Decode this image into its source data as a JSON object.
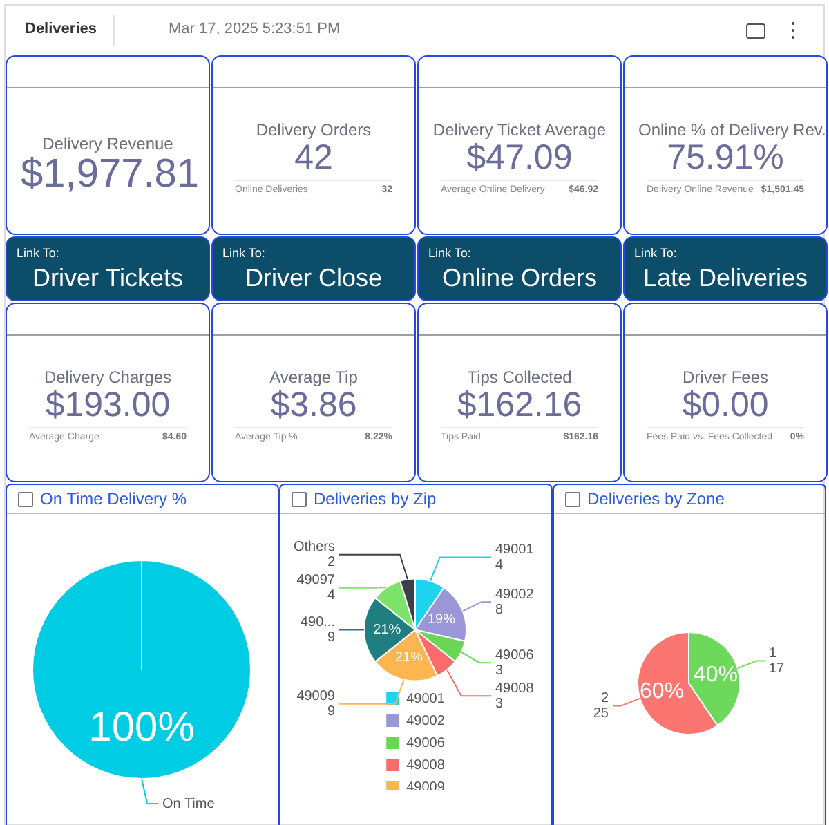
{
  "chart_data": [
    {
      "type": "other",
      "title": "Deliveries",
      "subtitle": "Mar 17, 2025 5:23:51 PM"
    },
    {
      "type": "other",
      "title": "Delivery Revenue",
      "annotations": [
        "$1,977.81"
      ]
    },
    {
      "type": "other",
      "title": "Delivery Orders",
      "annotations": [
        "42",
        "Online Deliveries",
        "32"
      ]
    },
    {
      "type": "other",
      "title": "Delivery Ticket Average",
      "annotations": [
        "$47.09",
        "Average Online Delivery",
        "$46.92"
      ]
    },
    {
      "type": "other",
      "title": "Online % of Delivery Rev.",
      "annotations": [
        "75.91%",
        "Delivery Online Revenue",
        "$1,501.45"
      ]
    },
    {
      "type": "other",
      "title": "Driver Tickets",
      "subtitle": "Link To:"
    },
    {
      "type": "other",
      "title": "Driver Close",
      "subtitle": "Link To:"
    },
    {
      "type": "other",
      "title": "Online Orders",
      "subtitle": "Link To:"
    },
    {
      "type": "other",
      "title": "Late Deliveries",
      "subtitle": "Link To:"
    },
    {
      "type": "other",
      "title": "Delivery Charges",
      "annotations": [
        "$193.00",
        "Average Charge",
        "$4.60"
      ]
    },
    {
      "type": "other",
      "title": "Average Tip",
      "annotations": [
        "$3.86",
        "Average Tip %",
        "8.22%"
      ]
    },
    {
      "type": "other",
      "title": "Tips Collected",
      "annotations": [
        "$162.16",
        "Tips Paid",
        "$162.16"
      ]
    },
    {
      "type": "other",
      "title": "Driver Fees",
      "annotations": [
        "$0.00",
        "Fees Paid vs. Fees Collected",
        "0%"
      ]
    },
    {
      "type": "pie",
      "title": "On Time Delivery %",
      "categories": [
        "On Time"
      ],
      "values": [
        100
      ],
      "colors": [
        "#00cde3"
      ],
      "value_labels": [
        "100%"
      ]
    },
    {
      "type": "pie",
      "title": "Deliveries by Zip",
      "categories": [
        "49001",
        "49002",
        "49006",
        "49008",
        "49009",
        "490...",
        "49097",
        "Others"
      ],
      "values": [
        4,
        8,
        3,
        3,
        9,
        9,
        4,
        2
      ],
      "colors": [
        "#1fd3ec",
        "#9b96d8",
        "#6ad655",
        "#fa6b69",
        "#fdb64f",
        "#1f7f80",
        "#7de36a",
        "#3a3f4b"
      ],
      "annotations": [
        {
          "text": "19%",
          "x": "49002"
        },
        {
          "text": "21%",
          "x": "49009"
        },
        {
          "text": "21%",
          "x": "490..."
        }
      ],
      "data_labels": true,
      "legend": "bottom"
    },
    {
      "type": "pie",
      "title": "Deliveries by Zone",
      "categories": [
        "1",
        "2"
      ],
      "values": [
        17,
        25
      ],
      "colors": [
        "#6dd95a",
        "#fb7670"
      ],
      "annotations": [
        {
          "text": "40%",
          "x": "1"
        },
        {
          "text": "60%",
          "x": "2"
        }
      ],
      "data_labels": true
    }
  ]
}
